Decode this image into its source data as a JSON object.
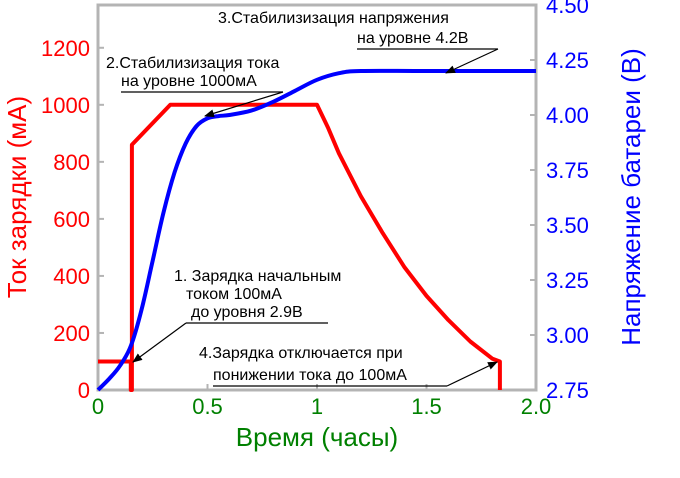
{
  "chart_data": {
    "type": "line",
    "xlabel": "Время (часы)",
    "ylabel_left": "Ток зарядки (мА)",
    "ylabel_right": "Напряжение батареи (В)",
    "xlim": [
      0,
      2.0
    ],
    "ylim_left": [
      0,
      1350
    ],
    "ylim_right": [
      2.75,
      4.5
    ],
    "x_ticks": [
      "0",
      "0.5",
      "1",
      "1.5",
      "2.0"
    ],
    "y_left_ticks": [
      "0",
      "200",
      "400",
      "600",
      "800",
      "1000",
      "1200"
    ],
    "y_right_ticks": [
      "2.75",
      "3.00",
      "3.25",
      "3.50",
      "3.75",
      "4.00",
      "4.25",
      "4.50"
    ],
    "grid": false,
    "series": [
      {
        "axis": "left",
        "color": "#ff0000",
        "x": [
          0,
          0.15,
          0.15,
          0.155,
          0.155,
          0.33,
          1.0,
          1.05,
          1.1,
          1.2,
          1.3,
          1.4,
          1.5,
          1.6,
          1.7,
          1.8,
          1.835,
          1.835
        ],
        "y": [
          100,
          100,
          0,
          0,
          860,
          1000,
          1000,
          920,
          830,
          680,
          550,
          430,
          330,
          245,
          170,
          110,
          100,
          0
        ]
      },
      {
        "axis": "right",
        "color": "#0000ff",
        "x": [
          0,
          0.05,
          0.1,
          0.15,
          0.2,
          0.25,
          0.3,
          0.35,
          0.4,
          0.45,
          0.5,
          0.55,
          0.6,
          0.7,
          0.8,
          0.9,
          1.0,
          1.1,
          1.2,
          1.5,
          2.0
        ],
        "y": [
          2.75,
          2.8,
          2.86,
          2.95,
          3.12,
          3.34,
          3.56,
          3.74,
          3.87,
          3.95,
          3.985,
          3.995,
          4.0,
          4.02,
          4.06,
          4.11,
          4.16,
          4.19,
          4.2,
          4.2,
          4.2
        ]
      }
    ],
    "annotations": [
      {
        "lines": [
          "1. Зарядка начальным",
          "током 100мА",
          "до уровня 2.9В"
        ]
      },
      {
        "lines": [
          "2.Стабилизизация тока",
          "на уровне 1000мА"
        ]
      },
      {
        "lines": [
          "3.Стабилизизация напряжения",
          "на уровне 4.2В"
        ]
      },
      {
        "lines": [
          "4.Зарядка отключается при",
          "понижении тока до 100мА"
        ]
      }
    ],
    "colors": {
      "current": "#ff0000",
      "voltage": "#0000ff",
      "time_axis": "#008000",
      "frame": "#b4b4b4"
    }
  }
}
